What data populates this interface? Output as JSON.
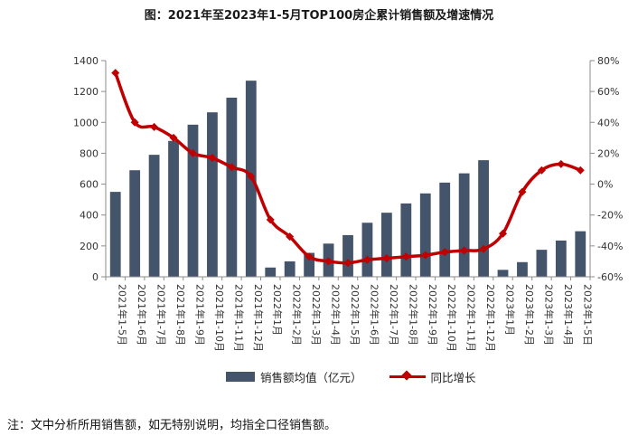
{
  "title": "图：2021年至2023年1-5月TOP100房企累计销售额及增速情况",
  "footnote": "注：文中分析所用销售额，如无特别说明，均指全口径销售额。",
  "colors": {
    "bar": "#44546A",
    "line": "#C00000"
  },
  "chart_data": {
    "type": "bar",
    "title": "图：2021年至2023年1-5月TOP100房企累计销售额及增速情况",
    "categories": [
      "2021年1-5月",
      "2021年1-6月",
      "2021年1-7月",
      "2021年1-8月",
      "2021年1-9月",
      "2021年1-10月",
      "2021年1-11月",
      "2021年1-12月",
      "2022年1月",
      "2022年1-2月",
      "2022年1-3月",
      "2022年1-4月",
      "2022年1-5月",
      "2022年1-6月",
      "2022年1-7月",
      "2022年1-8月",
      "2022年1-9月",
      "2022年1-10月",
      "2022年1-11月",
      "2022年1-12月",
      "2023年1月",
      "2023年1-2月",
      "2023年1-3月",
      "2023年1-4月",
      "2023年1-5日"
    ],
    "series": [
      {
        "name": "销售额均值（亿元）",
        "type": "bar",
        "axis": "left",
        "values": [
          550,
          690,
          790,
          880,
          985,
          1065,
          1160,
          1270,
          60,
          100,
          155,
          215,
          270,
          350,
          415,
          475,
          540,
          610,
          670,
          755,
          45,
          95,
          175,
          235,
          295
        ]
      },
      {
        "name": "同比增长",
        "type": "line",
        "axis": "right",
        "unit": "%",
        "values": [
          72,
          40,
          37,
          30,
          20,
          17,
          11,
          5,
          -23,
          -34,
          -47,
          -50,
          -51,
          -49,
          -48,
          -47,
          -46,
          -44,
          -43,
          -42,
          -32,
          -5,
          9,
          13,
          9
        ]
      }
    ],
    "left_axis": {
      "min": 0,
      "max": 1400,
      "ticks": [
        "0",
        "200",
        "400",
        "600",
        "800",
        "1000",
        "1200",
        "1400"
      ]
    },
    "right_axis": {
      "min": -60,
      "max": 80,
      "ticks": [
        "-60%",
        "-40%",
        "-20%",
        "0%",
        "20%",
        "40%",
        "60%",
        "80%"
      ]
    },
    "legend": [
      "销售额均值（亿元）",
      "同比增长"
    ],
    "legend_position": "bottom"
  }
}
